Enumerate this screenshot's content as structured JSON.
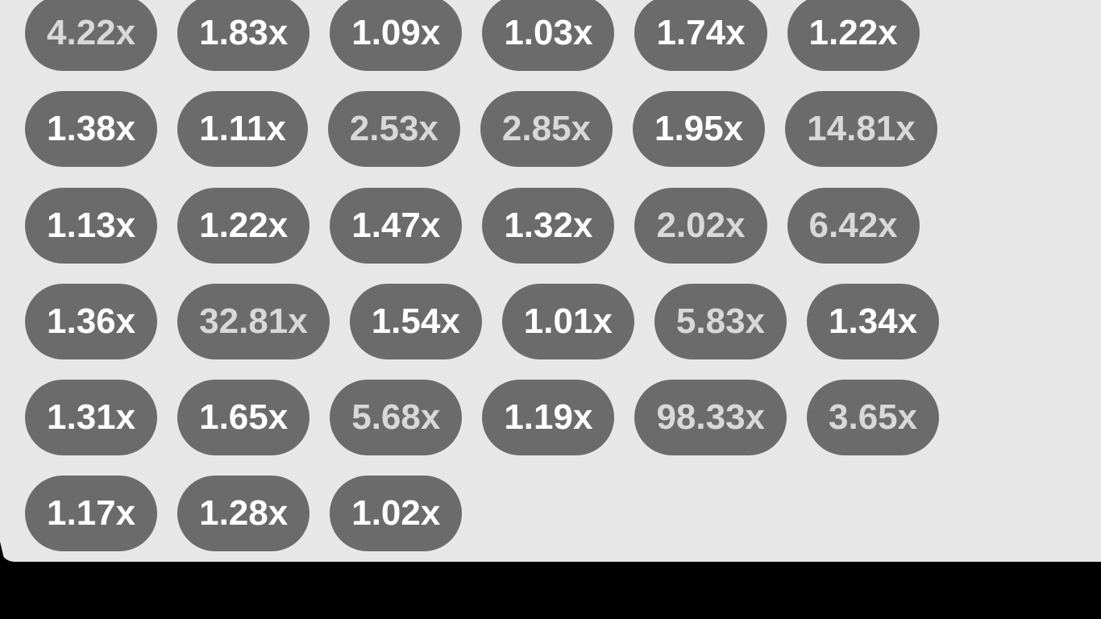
{
  "multiplier_history": {
    "rows": [
      [
        {
          "label": "4.22x",
          "style": "high"
        },
        {
          "label": "1.83x",
          "style": "low"
        },
        {
          "label": "1.09x",
          "style": "low"
        },
        {
          "label": "1.03x",
          "style": "low"
        },
        {
          "label": "1.74x",
          "style": "low"
        },
        {
          "label": "1.22x",
          "style": "low"
        }
      ],
      [
        {
          "label": "1.38x",
          "style": "low"
        },
        {
          "label": "1.11x",
          "style": "low"
        },
        {
          "label": "2.53x",
          "style": "high"
        },
        {
          "label": "2.85x",
          "style": "high"
        },
        {
          "label": "1.95x",
          "style": "low"
        },
        {
          "label": "14.81x",
          "style": "high"
        }
      ],
      [
        {
          "label": "1.13x",
          "style": "low"
        },
        {
          "label": "1.22x",
          "style": "low"
        },
        {
          "label": "1.47x",
          "style": "low"
        },
        {
          "label": "1.32x",
          "style": "low"
        },
        {
          "label": "2.02x",
          "style": "high"
        },
        {
          "label": "6.42x",
          "style": "high"
        }
      ],
      [
        {
          "label": "1.36x",
          "style": "low"
        },
        {
          "label": "32.81x",
          "style": "high"
        },
        {
          "label": "1.54x",
          "style": "low"
        },
        {
          "label": "1.01x",
          "style": "low"
        },
        {
          "label": "5.83x",
          "style": "high"
        },
        {
          "label": "1.34x",
          "style": "low"
        }
      ],
      [
        {
          "label": "1.31x",
          "style": "low"
        },
        {
          "label": "1.65x",
          "style": "low"
        },
        {
          "label": "5.68x",
          "style": "high"
        },
        {
          "label": "1.19x",
          "style": "low"
        },
        {
          "label": "98.33x",
          "style": "high"
        },
        {
          "label": "3.65x",
          "style": "high"
        }
      ],
      [
        {
          "label": "1.17x",
          "style": "low"
        },
        {
          "label": "1.28x",
          "style": "low"
        },
        {
          "label": "1.02x",
          "style": "low"
        }
      ]
    ]
  },
  "colors": {
    "panel_background": "#e7e7e7",
    "pill_background": "#6b6b6b",
    "pill_text_low": "#ffffff",
    "pill_text_high": "#d8d8d8",
    "outer_background": "#000000"
  }
}
